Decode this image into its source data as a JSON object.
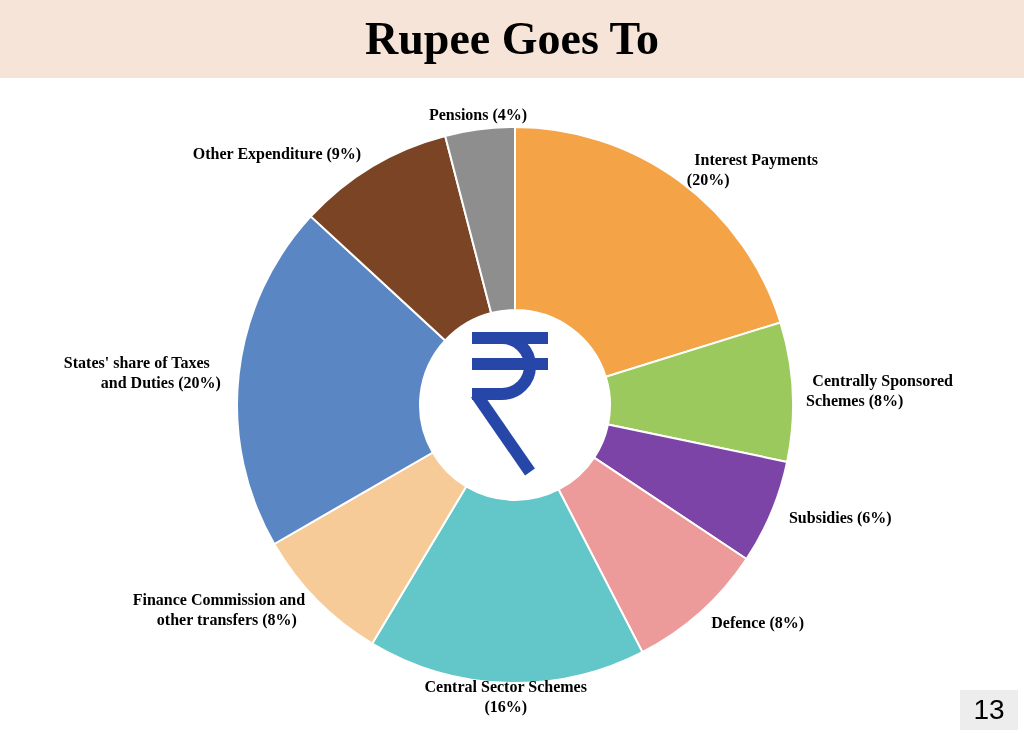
{
  "chart_data": {
    "type": "donut",
    "title": "Rupee Goes To",
    "categories": [
      "Interest Payments",
      "Centrally Sponsored Schemes",
      "Subsidies",
      "Defence",
      "Central Sector Schemes",
      "Finance Commission and other transfers",
      "States' share of Taxes and Duties",
      "Other Expenditure",
      "Pensions"
    ],
    "values": [
      20,
      8,
      6,
      8,
      16,
      8,
      20,
      9,
      4
    ],
    "value_labels": [
      "(20%)",
      "(8%)",
      "(6%)",
      "(8%)",
      "(16%)",
      "(8%)",
      "(20%)",
      "(9%)",
      "(4%)"
    ],
    "colors": [
      "#f4a347",
      "#9cc95e",
      "#7d44a8",
      "#ec9a9a",
      "#63c6c8",
      "#f7cb98",
      "#5a86c4",
      "#7b4525",
      "#8e8e8e"
    ],
    "annotations": [
      "13"
    ]
  }
}
